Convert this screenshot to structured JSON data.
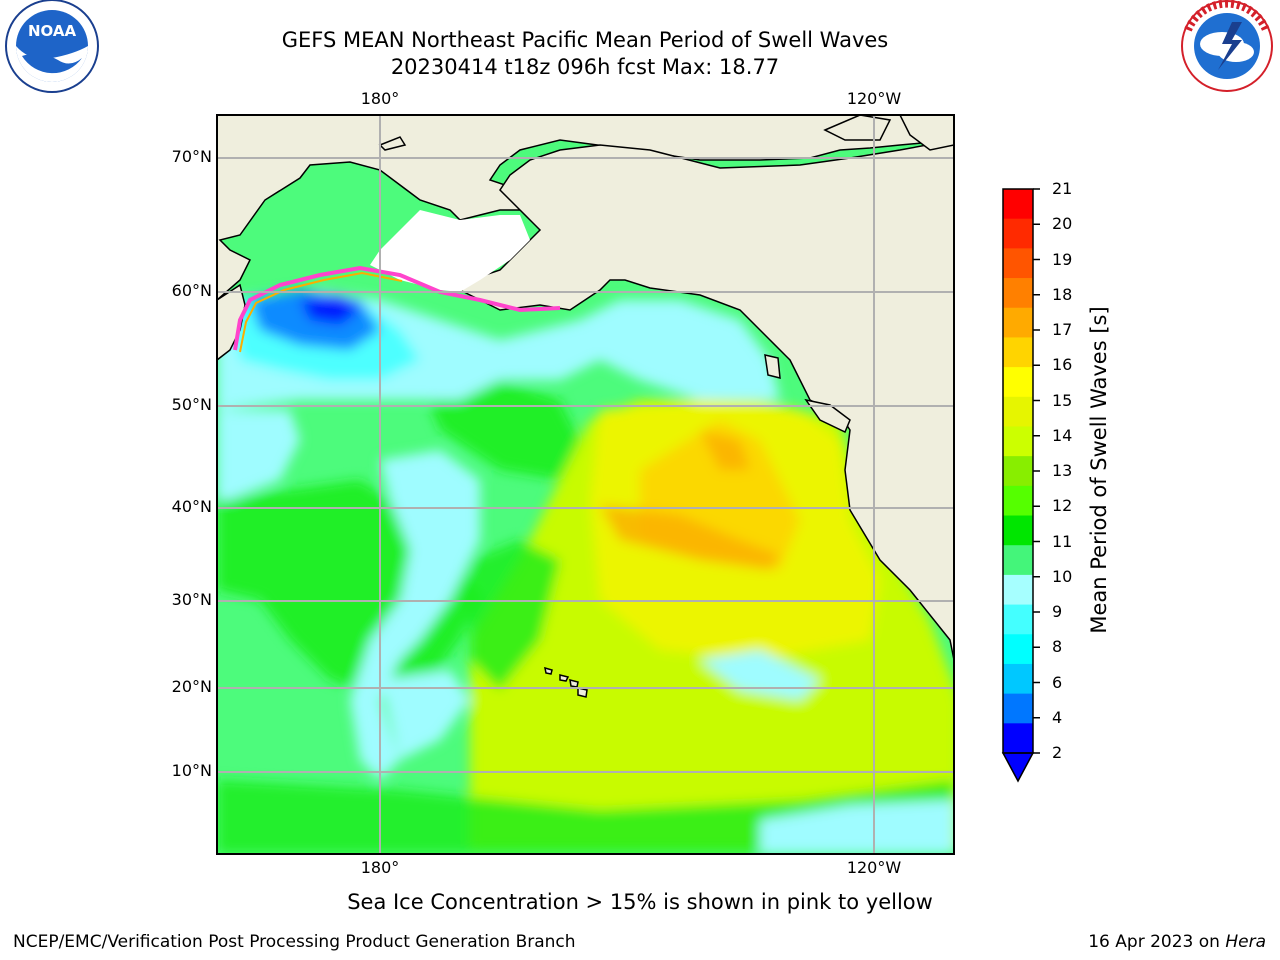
{
  "title": {
    "line1": "GEFS MEAN Northeast Pacific Mean Period of Swell Waves",
    "line2": "20230414 t18z 096h fcst   Max: 18.77"
  },
  "logos": {
    "noara_text": "NOAA",
    "noaa_ring": "NATIONAL OCEANIC AND ATMOSPHERIC ADMINISTRATION · U.S. DEPARTMENT OF COMMERCE",
    "nws_ring": "NATIONAL WEATHER SERVICE"
  },
  "map": {
    "lon_labels": [
      "180°",
      "120°W"
    ],
    "lat_labels": [
      "70°N",
      "60°N",
      "50°N",
      "40°N",
      "30°N",
      "20°N",
      "10°N"
    ],
    "colors": {
      "ocean_cyan": "#9ffcff",
      "ocean_green": "#4dfb7c",
      "ocean_bright_green": "#16ec16",
      "ocean_yellowgreen": "#c8fb00",
      "ocean_yellow": "#ecf500",
      "ocean_gold": "#fbd800",
      "ocean_orange": "#fbae00",
      "land": "#efeedd",
      "sea_ice": "#ff44cc"
    }
  },
  "colorbar": {
    "label": "Mean Period of Swell Waves [s]",
    "ticks": [
      "21",
      "20",
      "19",
      "18",
      "17",
      "16",
      "15",
      "14",
      "13",
      "12",
      "11",
      "10",
      "9",
      "8",
      "6",
      "4",
      "2"
    ],
    "colors": [
      "#ff0000",
      "#ff2a00",
      "#ff5500",
      "#ff8000",
      "#ffaa00",
      "#ffd400",
      "#ffff00",
      "#e6f500",
      "#ccff00",
      "#88ee00",
      "#55ff00",
      "#00e600",
      "#44f57a",
      "#a6ffff",
      "#44ffff",
      "#00ffff",
      "#00c8ff",
      "#0077ff",
      "#0000ff"
    ]
  },
  "note": "Sea Ice Concentration > 15% is shown in pink to yellow",
  "footer": {
    "left": "NCEP/EMC/Verification Post Processing Product Generation Branch",
    "right_prefix": "16 Apr 2023 on ",
    "right_host": "Hera"
  }
}
